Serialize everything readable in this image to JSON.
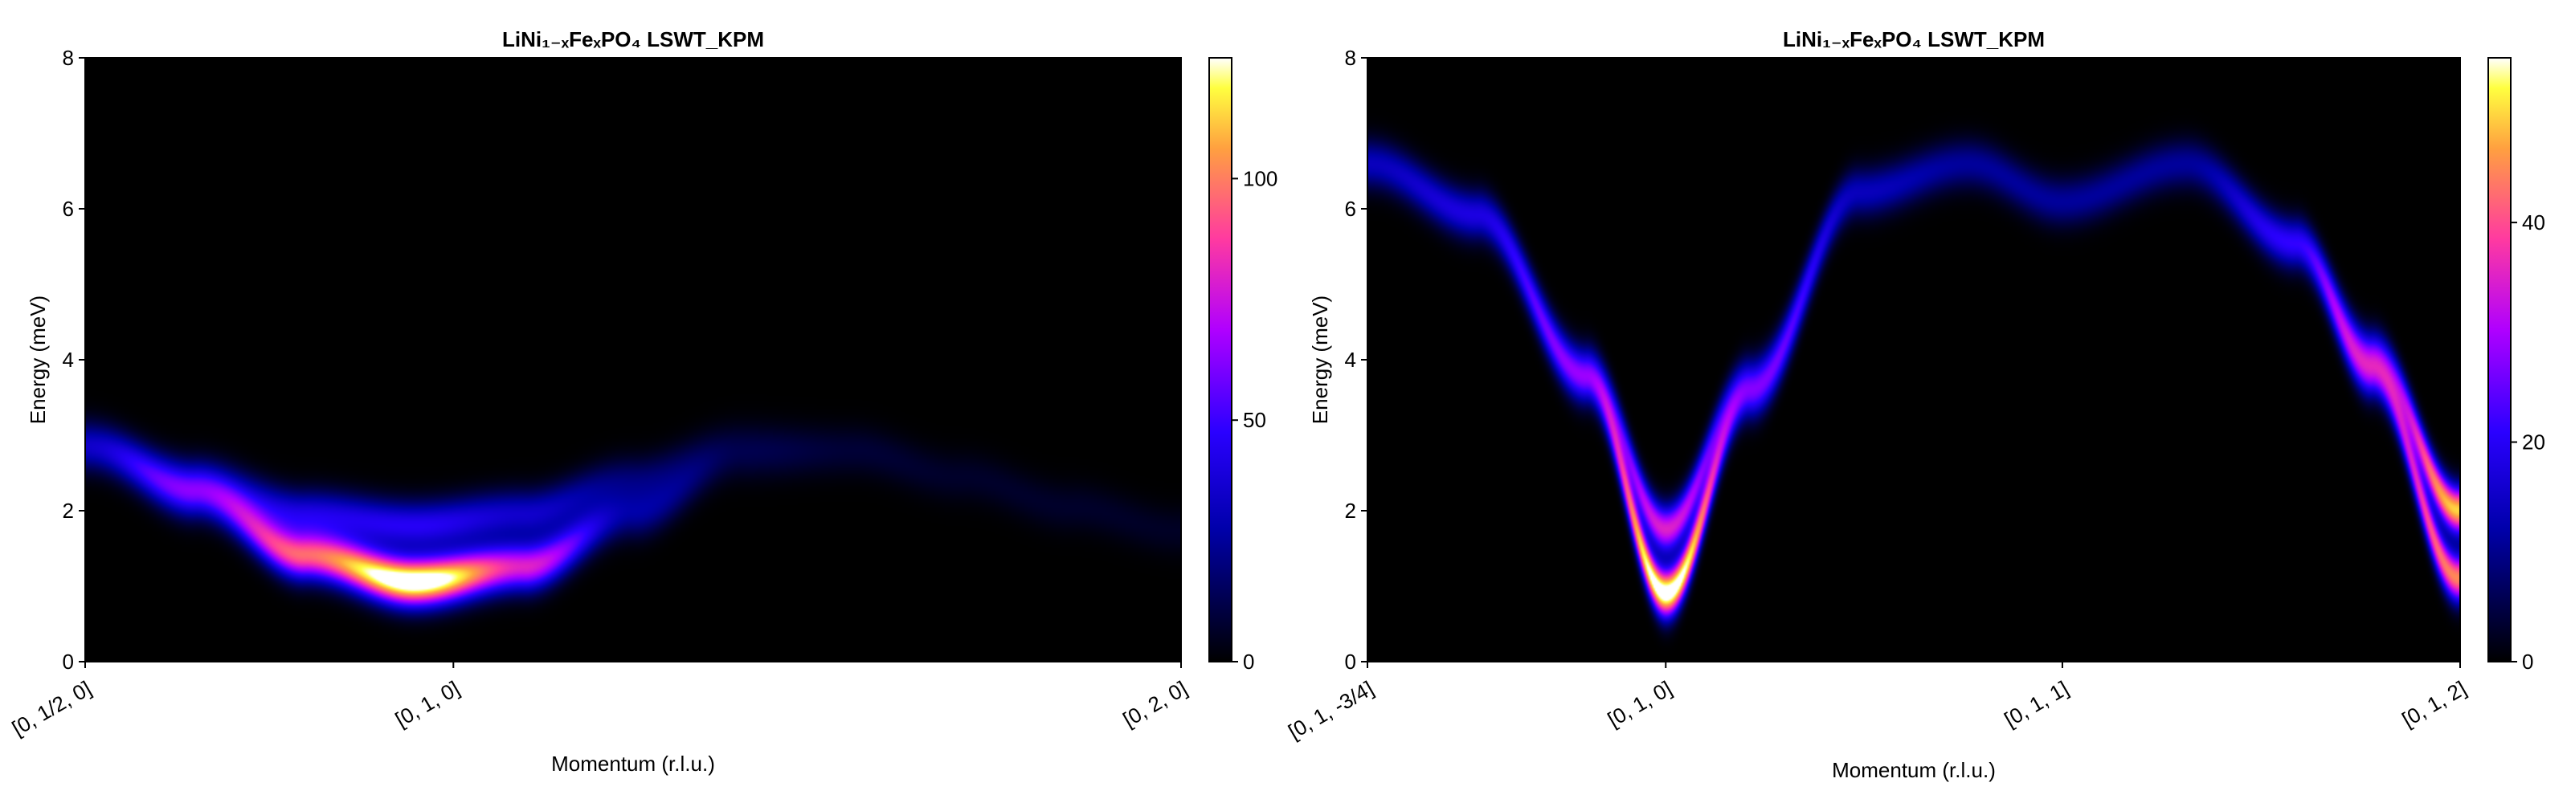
{
  "chart_data": [
    {
      "type": "heatmap",
      "title": "LiNi₁₋ₓFeₓPO₄ LSWT_KPM",
      "xlabel": "Momentum (r.l.u.)",
      "ylabel": "Energy (meV)",
      "ylim": [
        0,
        8
      ],
      "yticks": [
        "0",
        "2",
        "4",
        "6",
        "8"
      ],
      "xticks": [
        "[0, 1/2, 0]",
        "[0, 1, 0]",
        "[0, 2, 0]"
      ],
      "colormap": "black-blue-magenta-yellow-white",
      "colorbar": {
        "range": [
          0,
          125
        ],
        "ticks": [
          "0",
          "50",
          "100"
        ]
      },
      "branches": [
        {
          "name": "lower",
          "x": [
            0,
            0.1,
            0.2,
            0.3,
            0.4,
            0.5,
            0.6,
            0.7,
            0.8,
            0.9,
            1.0
          ],
          "energy": [
            2.85,
            2.2,
            1.4,
            1.05,
            1.25,
            1.95,
            2.7,
            2.75,
            2.4,
            2.0,
            1.7
          ],
          "peak_intensity": [
            20,
            45,
            95,
            140,
            80,
            25,
            8,
            5,
            4,
            4,
            3
          ]
        },
        {
          "name": "upper",
          "x": [
            0,
            0.1,
            0.2,
            0.3,
            0.4,
            0.5,
            0.6,
            0.7,
            0.8,
            0.9,
            1.0
          ],
          "energy": [
            2.85,
            2.4,
            1.95,
            1.8,
            1.95,
            2.4,
            2.9,
            2.85,
            2.5,
            2.1,
            1.75
          ],
          "peak_intensity": [
            15,
            25,
            40,
            45,
            35,
            18,
            6,
            4,
            3,
            3,
            3
          ]
        }
      ]
    },
    {
      "type": "heatmap",
      "title": "LiNi₁₋ₓFeₓPO₄ LSWT_KPM",
      "xlabel": "Momentum (r.l.u.)",
      "ylabel": "Energy (meV)",
      "ylim": [
        0,
        8
      ],
      "yticks": [
        "0",
        "2",
        "4",
        "6",
        "8"
      ],
      "xticks": [
        "[0, 1, -3/4]",
        "[0, 1, 0]",
        "[0, 1, 1]",
        "[0, 1, 2]"
      ],
      "colormap": "black-blue-magenta-yellow-white",
      "colorbar": {
        "range": [
          0,
          55
        ],
        "ticks": [
          "0",
          "20",
          "40"
        ]
      },
      "branches": [
        {
          "name": "lower",
          "x": [
            0,
            0.1,
            0.2,
            0.273,
            0.35,
            0.45,
            0.55,
            0.636,
            0.75,
            0.85,
            0.92,
            1.0
          ],
          "energy": [
            6.6,
            5.9,
            3.7,
            0.9,
            3.5,
            6.2,
            6.6,
            6.1,
            6.6,
            5.5,
            3.8,
            1.1
          ],
          "peak_intensity": [
            8,
            10,
            18,
            60,
            18,
            8,
            6,
            6,
            6,
            12,
            25,
            45
          ]
        },
        {
          "name": "upper",
          "x": [
            0,
            0.1,
            0.2,
            0.273,
            0.35,
            0.45,
            0.55,
            0.636,
            0.75,
            0.85,
            0.92,
            1.0
          ],
          "energy": [
            6.6,
            5.95,
            3.9,
            1.75,
            3.75,
            6.25,
            6.6,
            6.1,
            6.6,
            5.6,
            4.1,
            2.0
          ],
          "peak_intensity": [
            6,
            8,
            14,
            35,
            14,
            6,
            5,
            5,
            5,
            10,
            20,
            50
          ]
        }
      ]
    }
  ]
}
